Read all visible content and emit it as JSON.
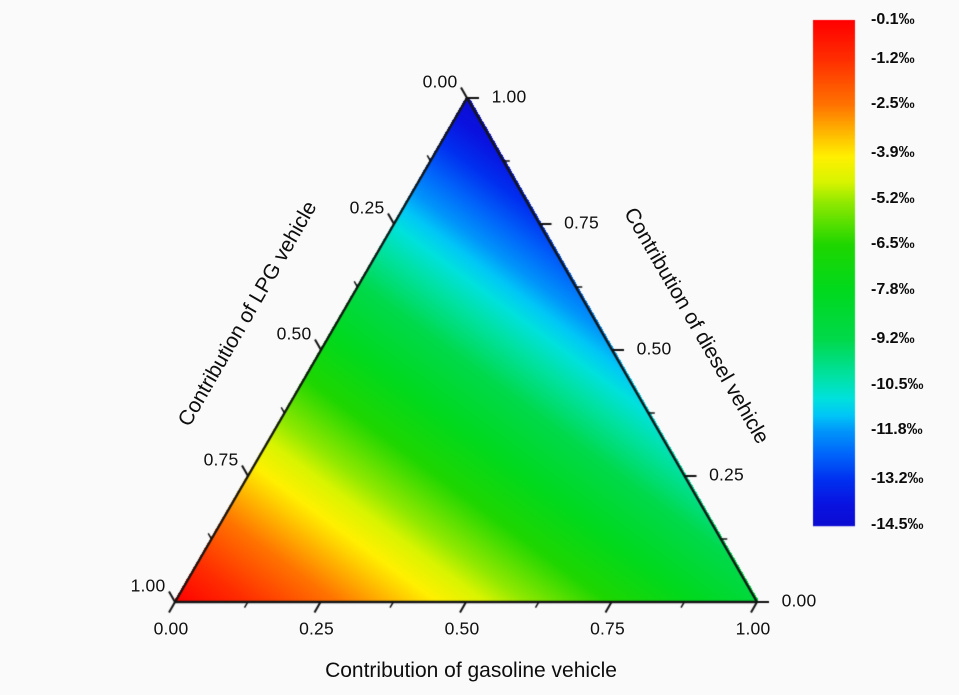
{
  "figure": {
    "background": "#fafafa",
    "edge_color": "#151515",
    "tick_color": "#111111",
    "text_color": "#101010"
  },
  "chart_data": {
    "type": "heatmap",
    "subtype": "ternary-color-map",
    "title": "",
    "axes": {
      "bottom": {
        "label": "Contribution of gasoline vehicle",
        "ticks": [
          "0.00",
          "0.25",
          "0.50",
          "0.75",
          "1.00"
        ],
        "range": [
          0,
          1
        ]
      },
      "left": {
        "label": "Contribution of LPG vehicle",
        "ticks": [
          "0.00",
          "0.25",
          "0.50",
          "0.75",
          "1.00"
        ],
        "range": [
          0,
          1
        ]
      },
      "right": {
        "label": "Contribution of diesel vehicle",
        "ticks": [
          "1.00",
          "0.75",
          "0.50",
          "0.25",
          "0.00"
        ],
        "range": [
          0,
          1
        ]
      }
    },
    "colorbar": {
      "tick_labels": [
        "-0.1‰",
        "-1.2‰",
        "-2.5‰",
        "-3.9‰",
        "-5.2‰",
        "-6.5‰",
        "-7.8‰",
        "-9.2‰",
        "-10.5‰",
        "-11.8‰",
        "-13.2‰",
        "-14.5‰"
      ],
      "tick_values": [
        -0.1,
        -1.2,
        -2.5,
        -3.9,
        -5.2,
        -6.5,
        -7.8,
        -9.2,
        -10.5,
        -11.8,
        -13.2,
        -14.5
      ],
      "range_top": -0.1,
      "range_bottom": -14.5,
      "unit": "‰"
    },
    "field": {
      "description": "value(point) = lpg*v_lpg + gasoline*v_gasoline + diesel*v_diesel, per-mil scale",
      "vertex_values": {
        "lpg": -0.1,
        "gasoline": -8.7,
        "diesel": -14.5
      }
    },
    "colormap": [
      {
        "t": 0.0,
        "rgb": [
          255,
          0,
          0
        ]
      },
      {
        "t": 0.076,
        "rgb": [
          255,
          45,
          0
        ]
      },
      {
        "t": 0.167,
        "rgb": [
          255,
          115,
          0
        ]
      },
      {
        "t": 0.24,
        "rgb": [
          255,
          205,
          0
        ]
      },
      {
        "t": 0.27,
        "rgb": [
          255,
          240,
          0
        ]
      },
      {
        "t": 0.32,
        "rgb": [
          216,
          244,
          0
        ]
      },
      {
        "t": 0.36,
        "rgb": [
          145,
          233,
          0
        ]
      },
      {
        "t": 0.444,
        "rgb": [
          31,
          214,
          0
        ]
      },
      {
        "t": 0.535,
        "rgb": [
          0,
          217,
          30
        ]
      },
      {
        "t": 0.632,
        "rgb": [
          0,
          217,
          75
        ]
      },
      {
        "t": 0.7,
        "rgb": [
          0,
          225,
          158
        ]
      },
      {
        "t": 0.748,
        "rgb": [
          0,
          225,
          220
        ]
      },
      {
        "t": 0.78,
        "rgb": [
          0,
          200,
          246
        ]
      },
      {
        "t": 0.813,
        "rgb": [
          0,
          150,
          250
        ]
      },
      {
        "t": 0.86,
        "rgb": [
          0,
          100,
          250
        ]
      },
      {
        "t": 0.91,
        "rgb": [
          0,
          48,
          240
        ]
      },
      {
        "t": 0.96,
        "rgb": [
          10,
          18,
          224
        ]
      },
      {
        "t": 1.0,
        "rgb": [
          12,
          12,
          210
        ]
      }
    ]
  }
}
